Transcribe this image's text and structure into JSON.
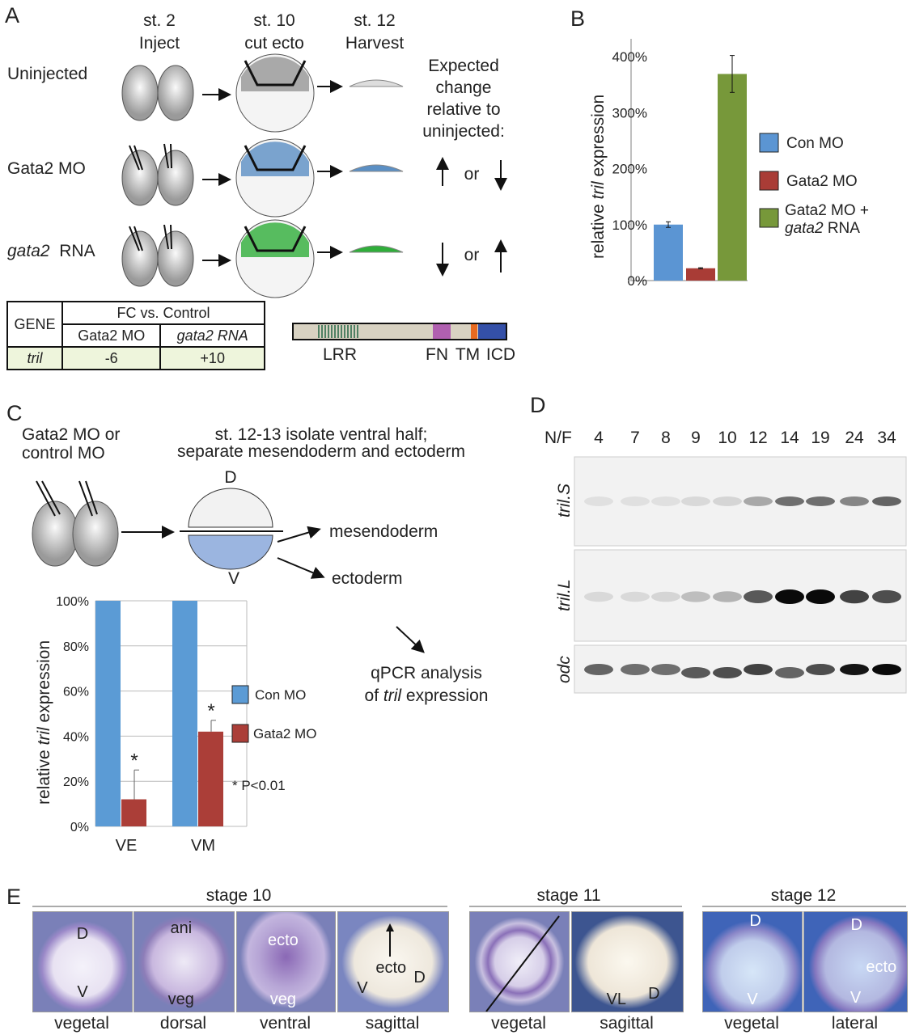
{
  "panel_labels": [
    "A",
    "B",
    "C",
    "D",
    "E"
  ],
  "panel_a": {
    "stage_headers": [
      {
        "stage": "st. 2",
        "action": "Inject"
      },
      {
        "stage": "st. 10",
        "action": "cut ecto"
      },
      {
        "stage": "st. 12",
        "action": "Harvest"
      }
    ],
    "rows": [
      {
        "label": "Uninjected",
        "color": "#dddddd"
      },
      {
        "label": "Gata2 MO",
        "color": "#5b8fc4"
      },
      {
        "label": "gata2",
        "label_suffix": "RNA",
        "color": "#2fae3a"
      }
    ],
    "expected": [
      "Expected",
      "change",
      "relative to",
      "uninjected:"
    ],
    "or": "or",
    "table": {
      "gene_header": "GENE",
      "fc_header": "FC vs. Control",
      "columns": [
        "Gata2 MO",
        "gata2 RNA"
      ],
      "gene": "tril",
      "values": [
        "-6",
        "+10"
      ]
    },
    "domains": [
      "LRR",
      "FN",
      "TM",
      "ICD"
    ]
  },
  "panel_c": {
    "injection": [
      "Gata2 MO or",
      "control MO"
    ],
    "procedure": [
      "st. 12-13 isolate ventral half;",
      "separate mesendoderm and ectoderm"
    ],
    "d": "D",
    "v": "V",
    "mesendoderm": "mesendoderm",
    "ectoderm": "ectoderm",
    "qpcr": [
      "qPCR analysis",
      "of",
      "tril",
      "expression"
    ],
    "pnote": "* P<0.01"
  },
  "chart_data": [
    {
      "type": "bar",
      "panel": "B",
      "categories": [
        "Con MO",
        "Gata2 MO",
        "Gata2 MO + gata2 RNA"
      ],
      "values": [
        100,
        22,
        369
      ],
      "errors": [
        5,
        1,
        33
      ],
      "colors": [
        "#5b95d3",
        "#a93c36",
        "#77983a"
      ],
      "ylabel_parts": [
        "relative",
        "tril",
        "expression"
      ],
      "yticks": [
        "0%",
        "100%",
        "200%",
        "300%",
        "400%"
      ],
      "ylim": [
        0,
        430
      ],
      "legend": [
        {
          "name": "Con MO"
        },
        {
          "name": "Gata2 MO"
        },
        {
          "name": "Gata2 MO +",
          "name2": "gata2",
          "name3": "RNA"
        }
      ],
      "legend_position": "right",
      "grid": false
    },
    {
      "type": "bar",
      "panel": "C",
      "categories": [
        "VE",
        "VM"
      ],
      "series": [
        {
          "name": "Con MO",
          "values": [
            100,
            100
          ],
          "errors": [
            0,
            0
          ],
          "color": "#5b9bd5"
        },
        {
          "name": "Gata2 MO",
          "values": [
            12,
            42
          ],
          "errors": [
            13,
            5
          ],
          "color": "#ab3e38",
          "significant": [
            true,
            true
          ]
        }
      ],
      "ylabel_parts": [
        "relative",
        "tril",
        "expression"
      ],
      "yticks": [
        "0%",
        "20%",
        "40%",
        "60%",
        "80%",
        "100%"
      ],
      "ylim": [
        0,
        100
      ],
      "grid": true,
      "legend_position": "right"
    }
  ],
  "panel_d": {
    "header": "N/F",
    "stages": [
      "4",
      "7",
      "8",
      "9",
      "10",
      "12",
      "14",
      "19",
      "24",
      "34"
    ],
    "blots": [
      {
        "name": "tril.S",
        "bands": [
          0.05,
          0.05,
          0.05,
          0.08,
          0.1,
          0.3,
          0.55,
          0.55,
          0.45,
          0.6
        ]
      },
      {
        "name": "tril.L",
        "bands": [
          0.08,
          0.08,
          0.1,
          0.2,
          0.25,
          0.65,
          1,
          1,
          0.75,
          0.7
        ]
      },
      {
        "name": "odc",
        "bands": [
          0.6,
          0.55,
          0.55,
          0.65,
          0.7,
          0.75,
          0.6,
          0.7,
          0.95,
          1
        ]
      }
    ]
  },
  "panel_e": {
    "groups": [
      {
        "title": "stage 10"
      },
      {
        "title": "stage 11"
      },
      {
        "title": "stage 12"
      }
    ],
    "images": [
      {
        "caption": "vegetal",
        "labels": [
          "D",
          "V"
        ]
      },
      {
        "caption": "dorsal",
        "labels": [
          "ani",
          "veg"
        ]
      },
      {
        "caption": "ventral",
        "labels": [
          "ecto",
          "veg"
        ]
      },
      {
        "caption": "sagittal",
        "labels": [
          "ecto",
          "V",
          "D"
        ]
      },
      {
        "caption": "vegetal",
        "labels": []
      },
      {
        "caption": "sagittal",
        "labels": [
          "VL",
          "D"
        ]
      },
      {
        "caption": "vegetal",
        "labels": [
          "D",
          "V"
        ]
      },
      {
        "caption": "lateral",
        "labels": [
          "D",
          "ecto",
          "V"
        ]
      }
    ]
  }
}
